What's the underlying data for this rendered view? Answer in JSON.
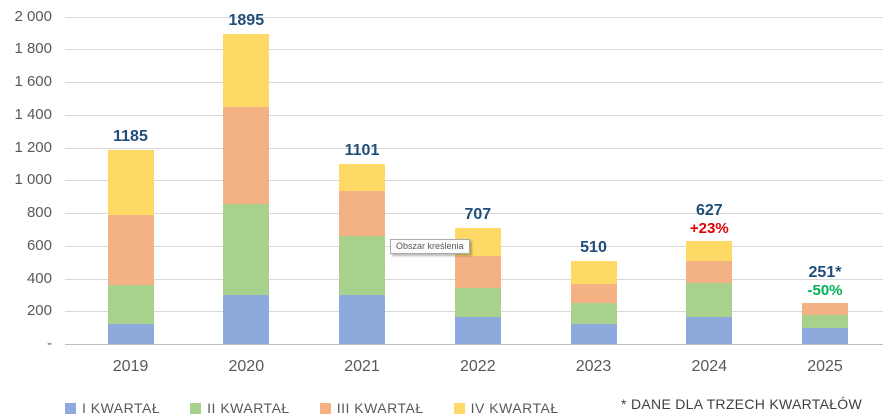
{
  "tooltip": {
    "text": "Obszar kreślenia"
  },
  "footnote": "* DANE DLA TRZECH KWARTAŁÓW",
  "colors": {
    "value_label": "#1f4e79",
    "axis_text": "#595959",
    "gridline": "#d9d9d9",
    "increase": "#e00000",
    "decrease": "#00b050"
  },
  "chart_data": {
    "type": "bar",
    "stacked": true,
    "title": "",
    "xlabel": "",
    "ylabel": "",
    "ylim": [
      0,
      2000
    ],
    "grid": true,
    "legend_position": "bottom",
    "categories": [
      "2019",
      "2020",
      "2021",
      "2022",
      "2023",
      "2024",
      "2025"
    ],
    "series": [
      {
        "name": "I KWARTAŁ",
        "color": "#8ea9db",
        "values": [
          120,
          300,
          300,
          165,
          120,
          165,
          95
        ]
      },
      {
        "name": "II KWARTAŁ",
        "color": "#a9d18e",
        "values": [
          240,
          555,
          360,
          175,
          130,
          205,
          85
        ]
      },
      {
        "name": "III KWARTAŁ",
        "color": "#f4b183",
        "values": [
          430,
          595,
          275,
          200,
          115,
          138,
          71
        ]
      },
      {
        "name": "IV KWARTAŁ",
        "color": "#ffd966",
        "values": [
          395,
          445,
          166,
          167,
          145,
          119,
          0
        ]
      }
    ],
    "totals": [
      1185,
      1895,
      1101,
      707,
      510,
      627,
      251
    ],
    "total_labels": [
      "1185",
      "1895",
      "1101",
      "707",
      "510",
      "627",
      "251*"
    ],
    "delta_labels": [
      null,
      null,
      null,
      null,
      null,
      {
        "text": "+23%",
        "color": "#e00000"
      },
      {
        "text": "-50%",
        "color": "#00b050"
      }
    ],
    "y_axis": {
      "tick_labels_top_to_bottom": [
        "2 000",
        "1 800",
        "1 600",
        "1 400",
        "1 200",
        "1 000",
        "800",
        "600",
        "400",
        "200",
        "-"
      ],
      "step": 200
    }
  }
}
